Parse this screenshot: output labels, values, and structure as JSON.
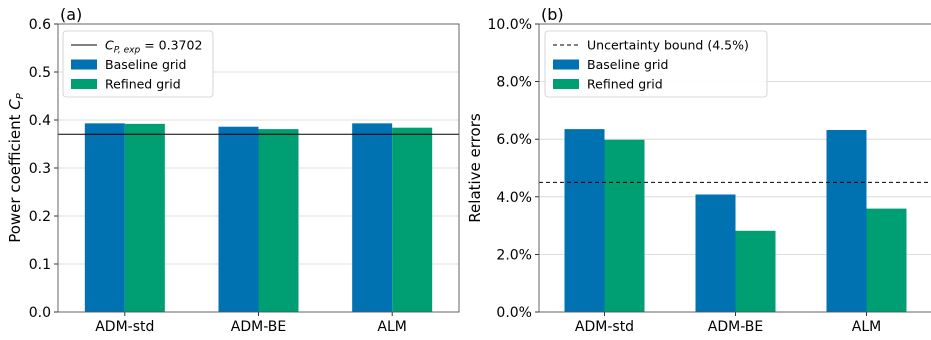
{
  "chart_data": [
    {
      "panel_label": "(a)",
      "type": "bar",
      "ylabel_main": "Power coefficient ",
      "ylabel_math": "C",
      "ylabel_sub": "P",
      "categories": [
        "ADM-std",
        "ADM-BE",
        "ALM"
      ],
      "series": [
        {
          "name": "Baseline grid",
          "color": "#0072b2",
          "values": [
            0.393,
            0.386,
            0.393
          ]
        },
        {
          "name": "Refined grid",
          "color": "#009e73",
          "values": [
            0.392,
            0.381,
            0.384
          ]
        }
      ],
      "reference_line": {
        "value": 0.3702,
        "style": "solid",
        "label_math": "C",
        "label_sub": "P, exp",
        "label_value": " = 0.3702"
      },
      "ylim": [
        0,
        0.6
      ],
      "yticks": [
        "0.0",
        "0.1",
        "0.2",
        "0.3",
        "0.4",
        "0.5",
        "0.6"
      ],
      "ytick_values": [
        0,
        0.1,
        0.2,
        0.3,
        0.4,
        0.5,
        0.6
      ],
      "grid": "horizontal",
      "legend_position": "top-left"
    },
    {
      "panel_label": "(b)",
      "type": "bar",
      "ylabel": "Relative errors",
      "categories": [
        "ADM-std",
        "ADM-BE",
        "ALM"
      ],
      "series": [
        {
          "name": "Baseline grid",
          "color": "#0072b2",
          "values": [
            6.35,
            4.08,
            6.32
          ]
        },
        {
          "name": "Refined grid",
          "color": "#009e73",
          "values": [
            5.98,
            2.82,
            3.59
          ]
        }
      ],
      "reference_line": {
        "value": 4.5,
        "style": "dashed",
        "label": "Uncertainty bound (4.5%)"
      },
      "ylim": [
        0,
        10
      ],
      "yticks": [
        "0.0%",
        "2.0%",
        "4.0%",
        "6.0%",
        "8.0%",
        "10.0%"
      ],
      "ytick_values": [
        0,
        2,
        4,
        6,
        8,
        10
      ],
      "grid": "horizontal",
      "legend_position": "top-left"
    }
  ]
}
